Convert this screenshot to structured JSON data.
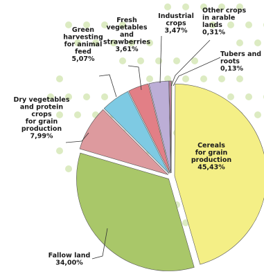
{
  "chart_data": {
    "type": "pie",
    "slices": [
      {
        "key": "cereals",
        "lines": [
          "Cereals",
          "for grain",
          "production",
          "45,43%"
        ],
        "value": 45.43,
        "color": "#f4ef86"
      },
      {
        "key": "fallow",
        "lines": [
          "Fallow land",
          "34,00%"
        ],
        "value": 34.0,
        "color": "#a9c769"
      },
      {
        "key": "dryveg",
        "lines": [
          "Dry vegetables",
          "and protein",
          "crops",
          "for grain",
          "production",
          "7,99%"
        ],
        "value": 7.99,
        "color": "#dd9a9e"
      },
      {
        "key": "green",
        "lines": [
          "Green",
          "harvesting",
          "for animal",
          "feed",
          "5,07%"
        ],
        "value": 5.07,
        "color": "#7ecae3"
      },
      {
        "key": "fresh",
        "lines": [
          "Fresh",
          "vegetables",
          "and",
          "strawberries",
          "3,61%"
        ],
        "value": 3.61,
        "color": "#e27f86"
      },
      {
        "key": "industrial",
        "lines": [
          "Industrial",
          "crops",
          "3,47%"
        ],
        "value": 3.47,
        "color": "#bcaed6"
      },
      {
        "key": "other",
        "lines": [
          "Other crops",
          "in arable",
          "lands",
          "0,31%"
        ],
        "value": 0.31,
        "color": "#d98ab3"
      },
      {
        "key": "tubers",
        "lines": [
          "Tubers and",
          "roots",
          "0,13%"
        ],
        "value": 0.13,
        "color": "#cfe39c"
      }
    ],
    "title": "",
    "legend": "none"
  }
}
